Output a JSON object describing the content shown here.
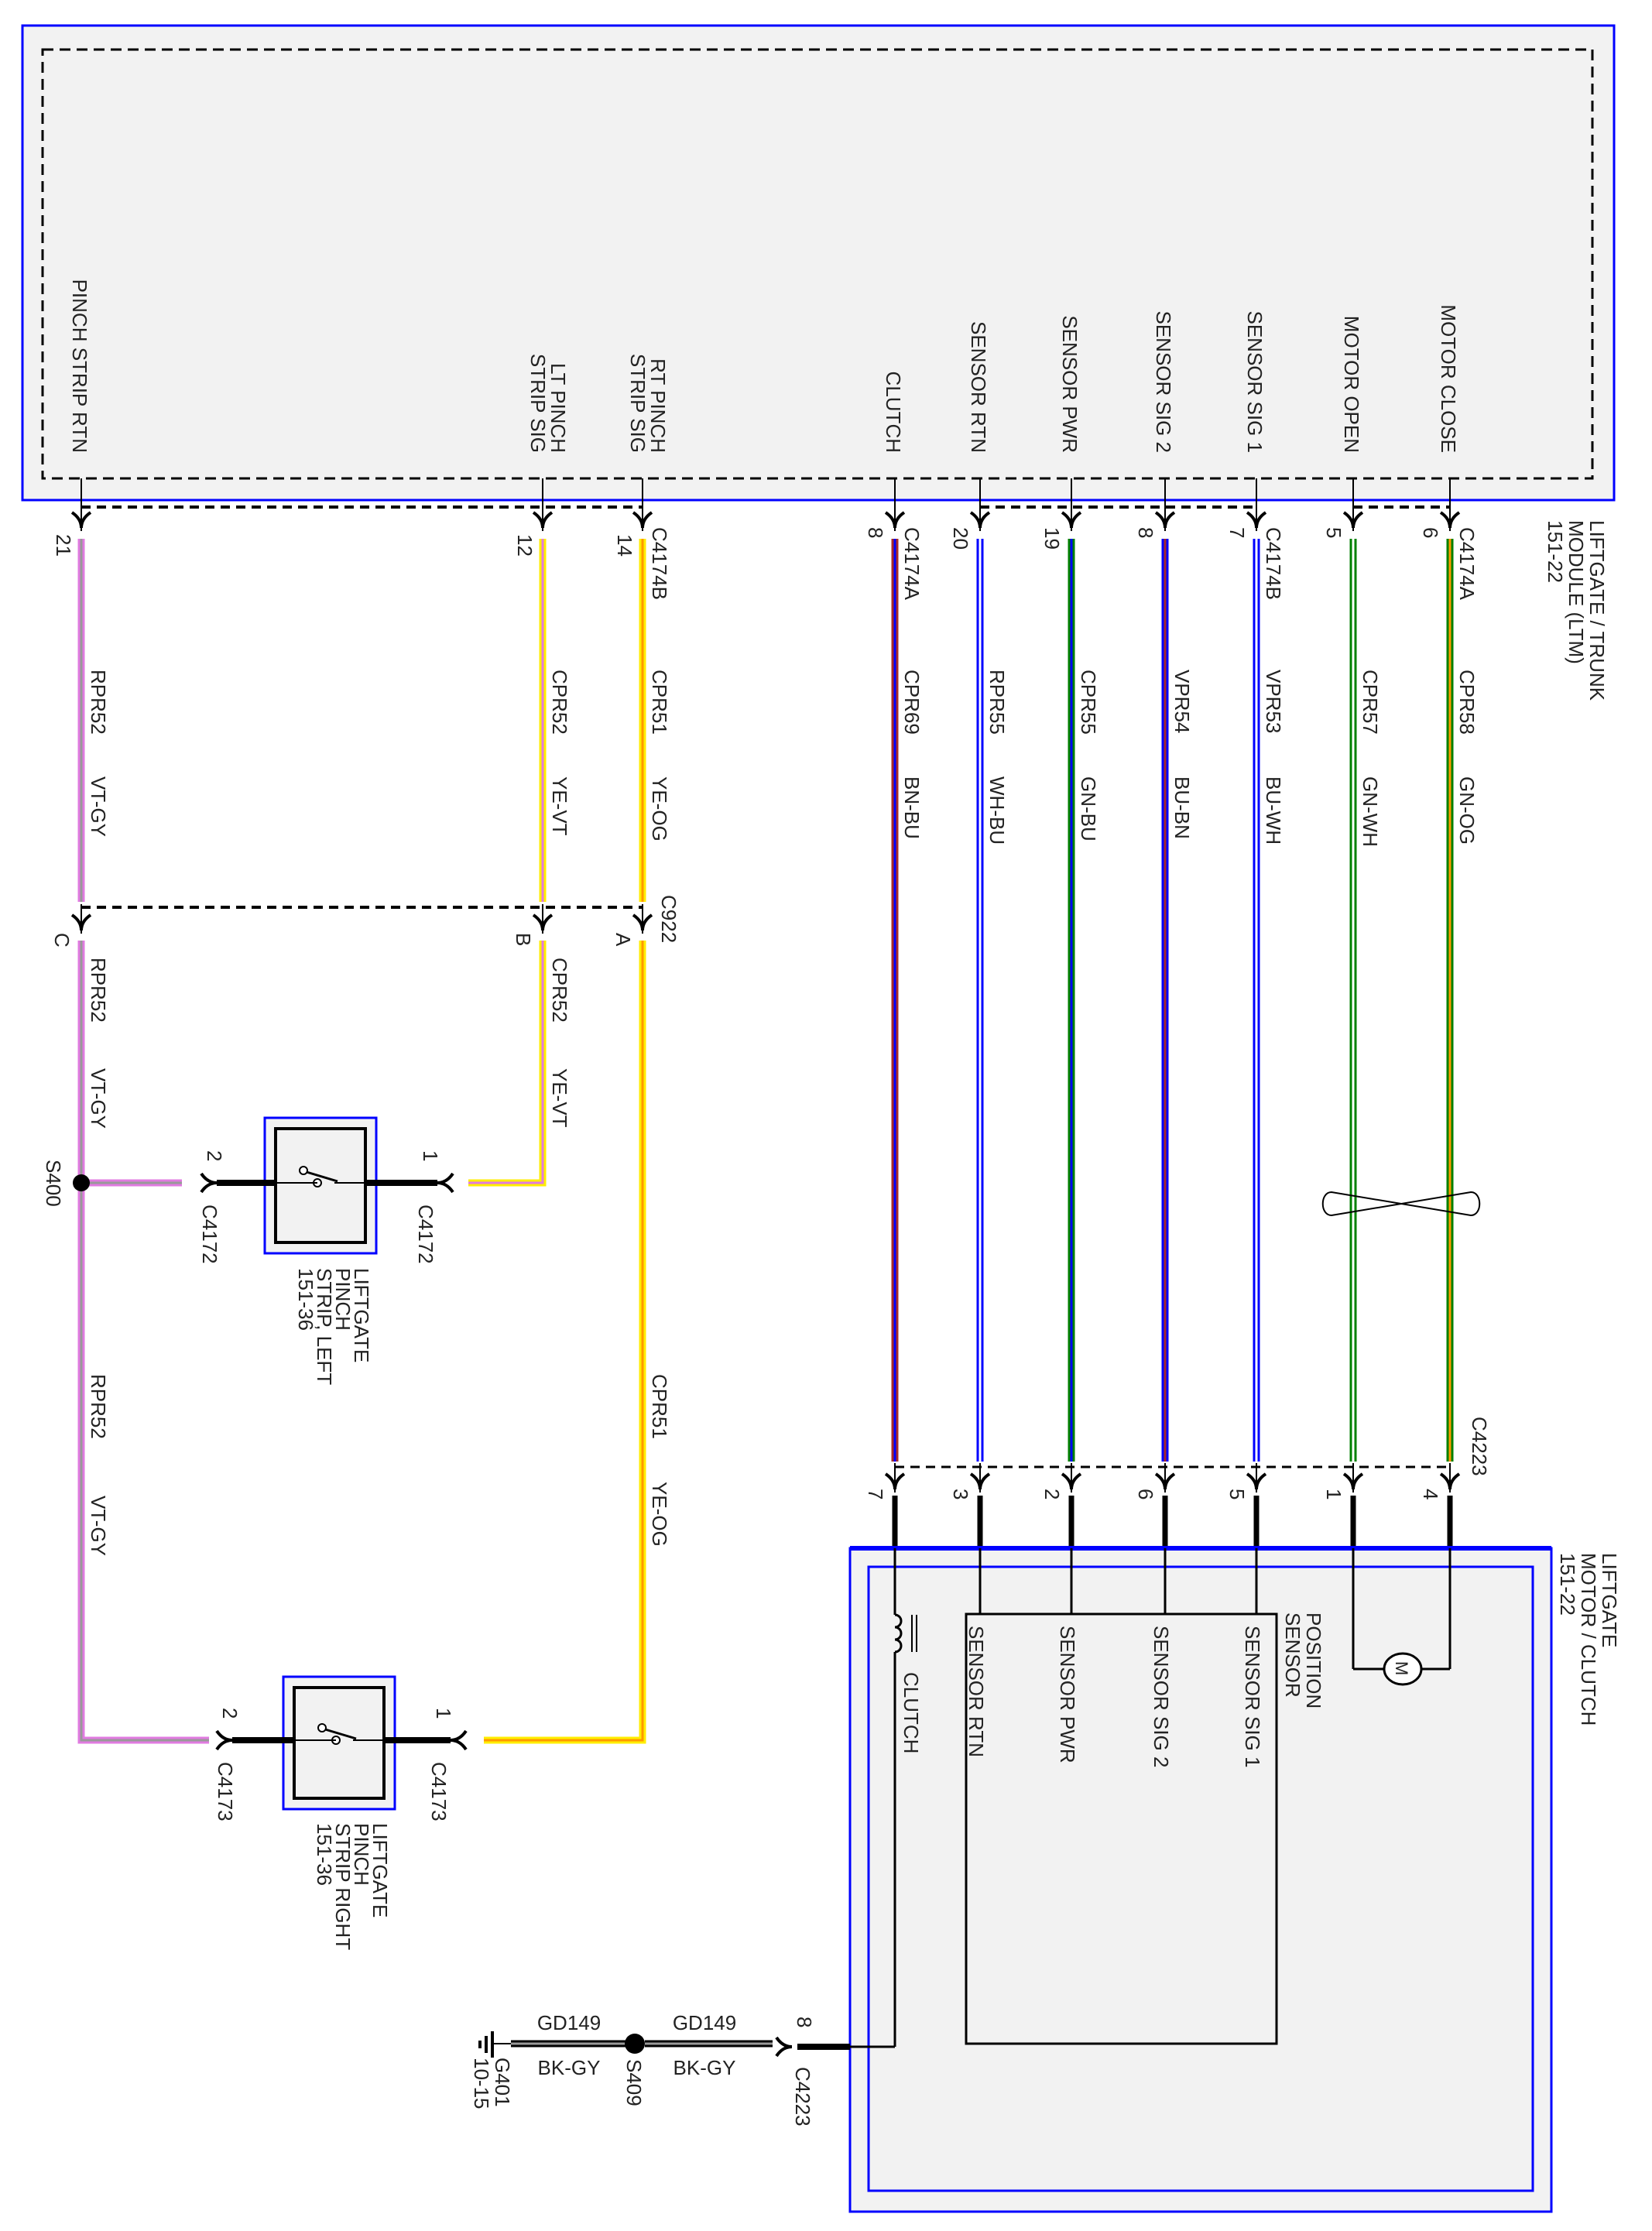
{
  "module": {
    "name_lines": [
      "LIFTGATE / TRUNK",
      "MODULE (LTM)",
      "151-22"
    ],
    "border_color": "#0000ff",
    "fill_color": "#f2f2f2"
  },
  "left_wires": [
    {
      "module_label": [
        "PINCH STRIP RTN"
      ],
      "pin": "21",
      "circuit": "RPR52",
      "color_code": "VT-GY",
      "base": "#e07be0",
      "stripe": "#999999",
      "c922_pin": "C"
    },
    {
      "module_label": [
        "LT PINCH",
        "STRIP SIG"
      ],
      "pin": "12",
      "circuit": "CPR52",
      "color_code": "YE-VT",
      "base": "#ffee00",
      "stripe": "#e07be0",
      "c922_pin": "B"
    },
    {
      "module_label": [
        "RT PINCH",
        "STRIP SIG"
      ],
      "pin": "14",
      "circuit": "CPR51",
      "color_code": "YE-OG",
      "base": "#ffee00",
      "stripe": "#ff9900",
      "c922_pin": "A"
    }
  ],
  "left_connector_label": "C4174B",
  "c922_label": "C922",
  "splice_s400": "S400",
  "right_wires": [
    {
      "module_label": "CLUTCH",
      "pin": "8",
      "connector": "C4174A",
      "circuit": "CPR69",
      "color_code": "BN-BU",
      "base": "#a52a2a",
      "stripe": "#0000ff",
      "c4223_pin": "7"
    },
    {
      "module_label": "SENSOR RTN",
      "pin": "20",
      "connector": "",
      "circuit": "RPR55",
      "color_code": "WH-BU",
      "base": "#0000ff",
      "stripe": "#ffffff",
      "c4223_pin": "3"
    },
    {
      "module_label": "SENSOR PWR",
      "pin": "19",
      "connector": "",
      "circuit": "CPR55",
      "color_code": "GN-BU",
      "base": "#008000",
      "stripe": "#0000ff",
      "c4223_pin": "2"
    },
    {
      "module_label": "SENSOR SIG 2",
      "pin": "8",
      "connector": "",
      "circuit": "VPR54",
      "color_code": "BU-BN",
      "base": "#0000ff",
      "stripe": "#a52a2a",
      "c4223_pin": "6"
    },
    {
      "module_label": "SENSOR SIG 1",
      "pin": "7",
      "connector": "C4174B",
      "circuit": "VPR53",
      "color_code": "BU-WH",
      "base": "#0000ff",
      "stripe": "#ffffff",
      "c4223_pin": "5"
    },
    {
      "module_label": "MOTOR OPEN",
      "pin": "5",
      "connector": "",
      "circuit": "CPR57",
      "color_code": "GN-WH",
      "base": "#008000",
      "stripe": "#ffffff",
      "c4223_pin": "1"
    },
    {
      "module_label": "MOTOR CLOSE",
      "pin": "6",
      "connector": "C4174A",
      "circuit": "CPR58",
      "color_code": "GN-OG",
      "base": "#008000",
      "stripe": "#ff9900",
      "c4223_pin": "4"
    }
  ],
  "c4223_label": "C4223",
  "pinch_left": {
    "name_lines": [
      "LIFTGATE",
      "PINCH",
      "STRIP, LEFT",
      "151-36"
    ],
    "connector": "C4172",
    "pin_a": "2",
    "pin_b": "1"
  },
  "pinch_right": {
    "name_lines": [
      "LIFTGATE",
      "PINCH",
      "STRIP RIGHT",
      "151-36"
    ],
    "connector": "C4173",
    "pin_a": "2",
    "pin_b": "1"
  },
  "lower_left_labels": {
    "violet_circuit": "RPR52",
    "violet_color": "VT-GY",
    "yellow_circuit": "CPR51",
    "yellow_color": "YE-OG"
  },
  "motor_module": {
    "name_lines": [
      "LIFTGATE",
      "MOTOR / CLUTCH",
      "151-22"
    ],
    "position_sensor_lines": [
      "POSITION",
      "SENSOR"
    ],
    "sensor_pins": [
      "SENSOR RTN",
      "SENSOR PWR",
      "SENSOR SIG 2",
      "SENSOR SIG 1"
    ],
    "clutch_label": "CLUTCH",
    "motor_symbol": "M"
  },
  "ground": {
    "connector_pin": "8",
    "connector": "C4223",
    "circuit": "GD149",
    "color_code": "BK-GY",
    "splice": "S409",
    "ground_lines": [
      "G401",
      "10-15"
    ]
  }
}
